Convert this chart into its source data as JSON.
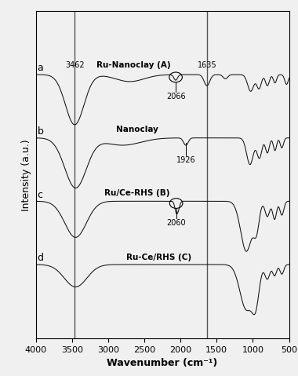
{
  "xlabel": "Wavenumber (cm⁻¹)",
  "ylabel": "Intensity (a.u.)",
  "xlim": [
    4000,
    500
  ],
  "x_ticks": [
    4000,
    3500,
    3000,
    2500,
    2000,
    1500,
    1000,
    500
  ],
  "spectrum_labels": [
    "Ru-Nanoclay (A)",
    "Nanoclay",
    "Ru/Ce-RHS (B)",
    "Ru-Ce/RHS (C)"
  ],
  "letter_labels": [
    "a",
    "b",
    "c",
    "d"
  ],
  "vline1": 3462,
  "vline2": 1635,
  "background_color": "#f0f0f0",
  "line_color": "#111111",
  "offsets": [
    0.72,
    0.48,
    0.24,
    0.0
  ],
  "scale": 0.19
}
